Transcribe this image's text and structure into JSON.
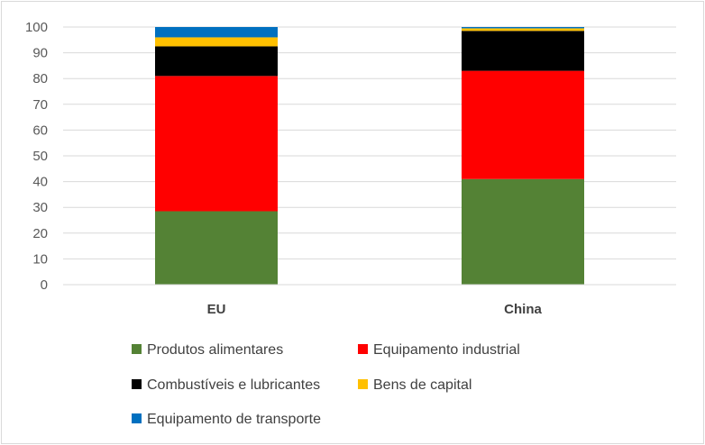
{
  "chart_data": {
    "type": "bar",
    "stacked": true,
    "categories": [
      "EU",
      "China"
    ],
    "series": [
      {
        "name": "Produtos alimentares",
        "color": "#548235",
        "values": [
          28.5,
          41
        ]
      },
      {
        "name": "Equipamento industrial",
        "color": "#ff0000",
        "values": [
          52.5,
          42
        ]
      },
      {
        "name": "Combustíveis e lubricantes",
        "color": "#000000",
        "values": [
          11.5,
          15.5
        ]
      },
      {
        "name": "Bens de capital",
        "color": "#ffc000",
        "values": [
          3.5,
          1
        ]
      },
      {
        "name": "Equipamento de transporte",
        "color": "#0070c0",
        "values": [
          4,
          0.5
        ]
      }
    ],
    "ylim": [
      0,
      100
    ],
    "yticks": [
      "0",
      "10",
      "20",
      "30",
      "40",
      "50",
      "60",
      "70",
      "80",
      "90",
      "100"
    ],
    "grid": true,
    "legend_position": "bottom"
  }
}
